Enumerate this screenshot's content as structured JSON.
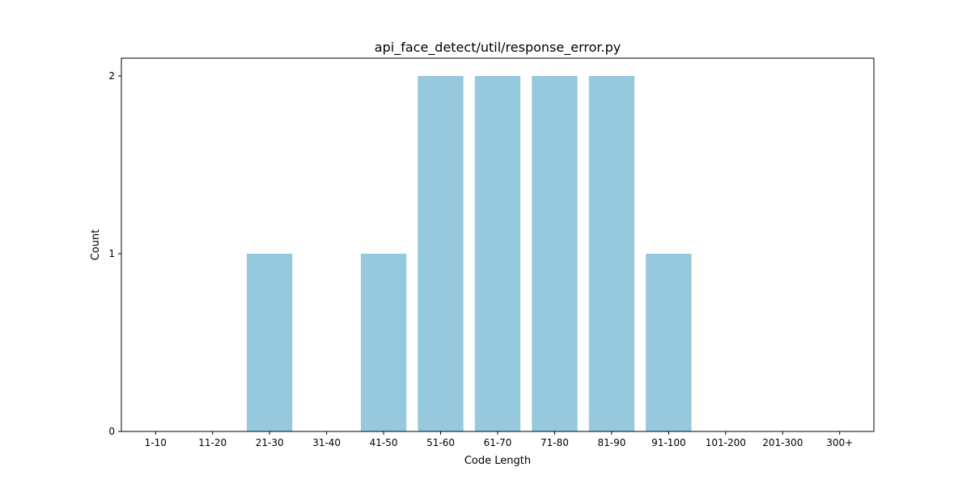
{
  "chart_data": {
    "type": "bar",
    "title": "api_face_detect/util/response_error.py",
    "xlabel": "Code Length",
    "ylabel": "Count",
    "categories": [
      "1-10",
      "11-20",
      "21-30",
      "31-40",
      "41-50",
      "51-60",
      "61-70",
      "71-80",
      "81-90",
      "91-100",
      "101-200",
      "201-300",
      "300+"
    ],
    "values": [
      0,
      0,
      1,
      0,
      1,
      2,
      2,
      2,
      2,
      1,
      0,
      0,
      0
    ],
    "yticks": [
      0,
      1,
      2
    ],
    "ylim": [
      0,
      2.1
    ],
    "bar_color": "#96c9dd",
    "grid": false,
    "legend": "none"
  }
}
